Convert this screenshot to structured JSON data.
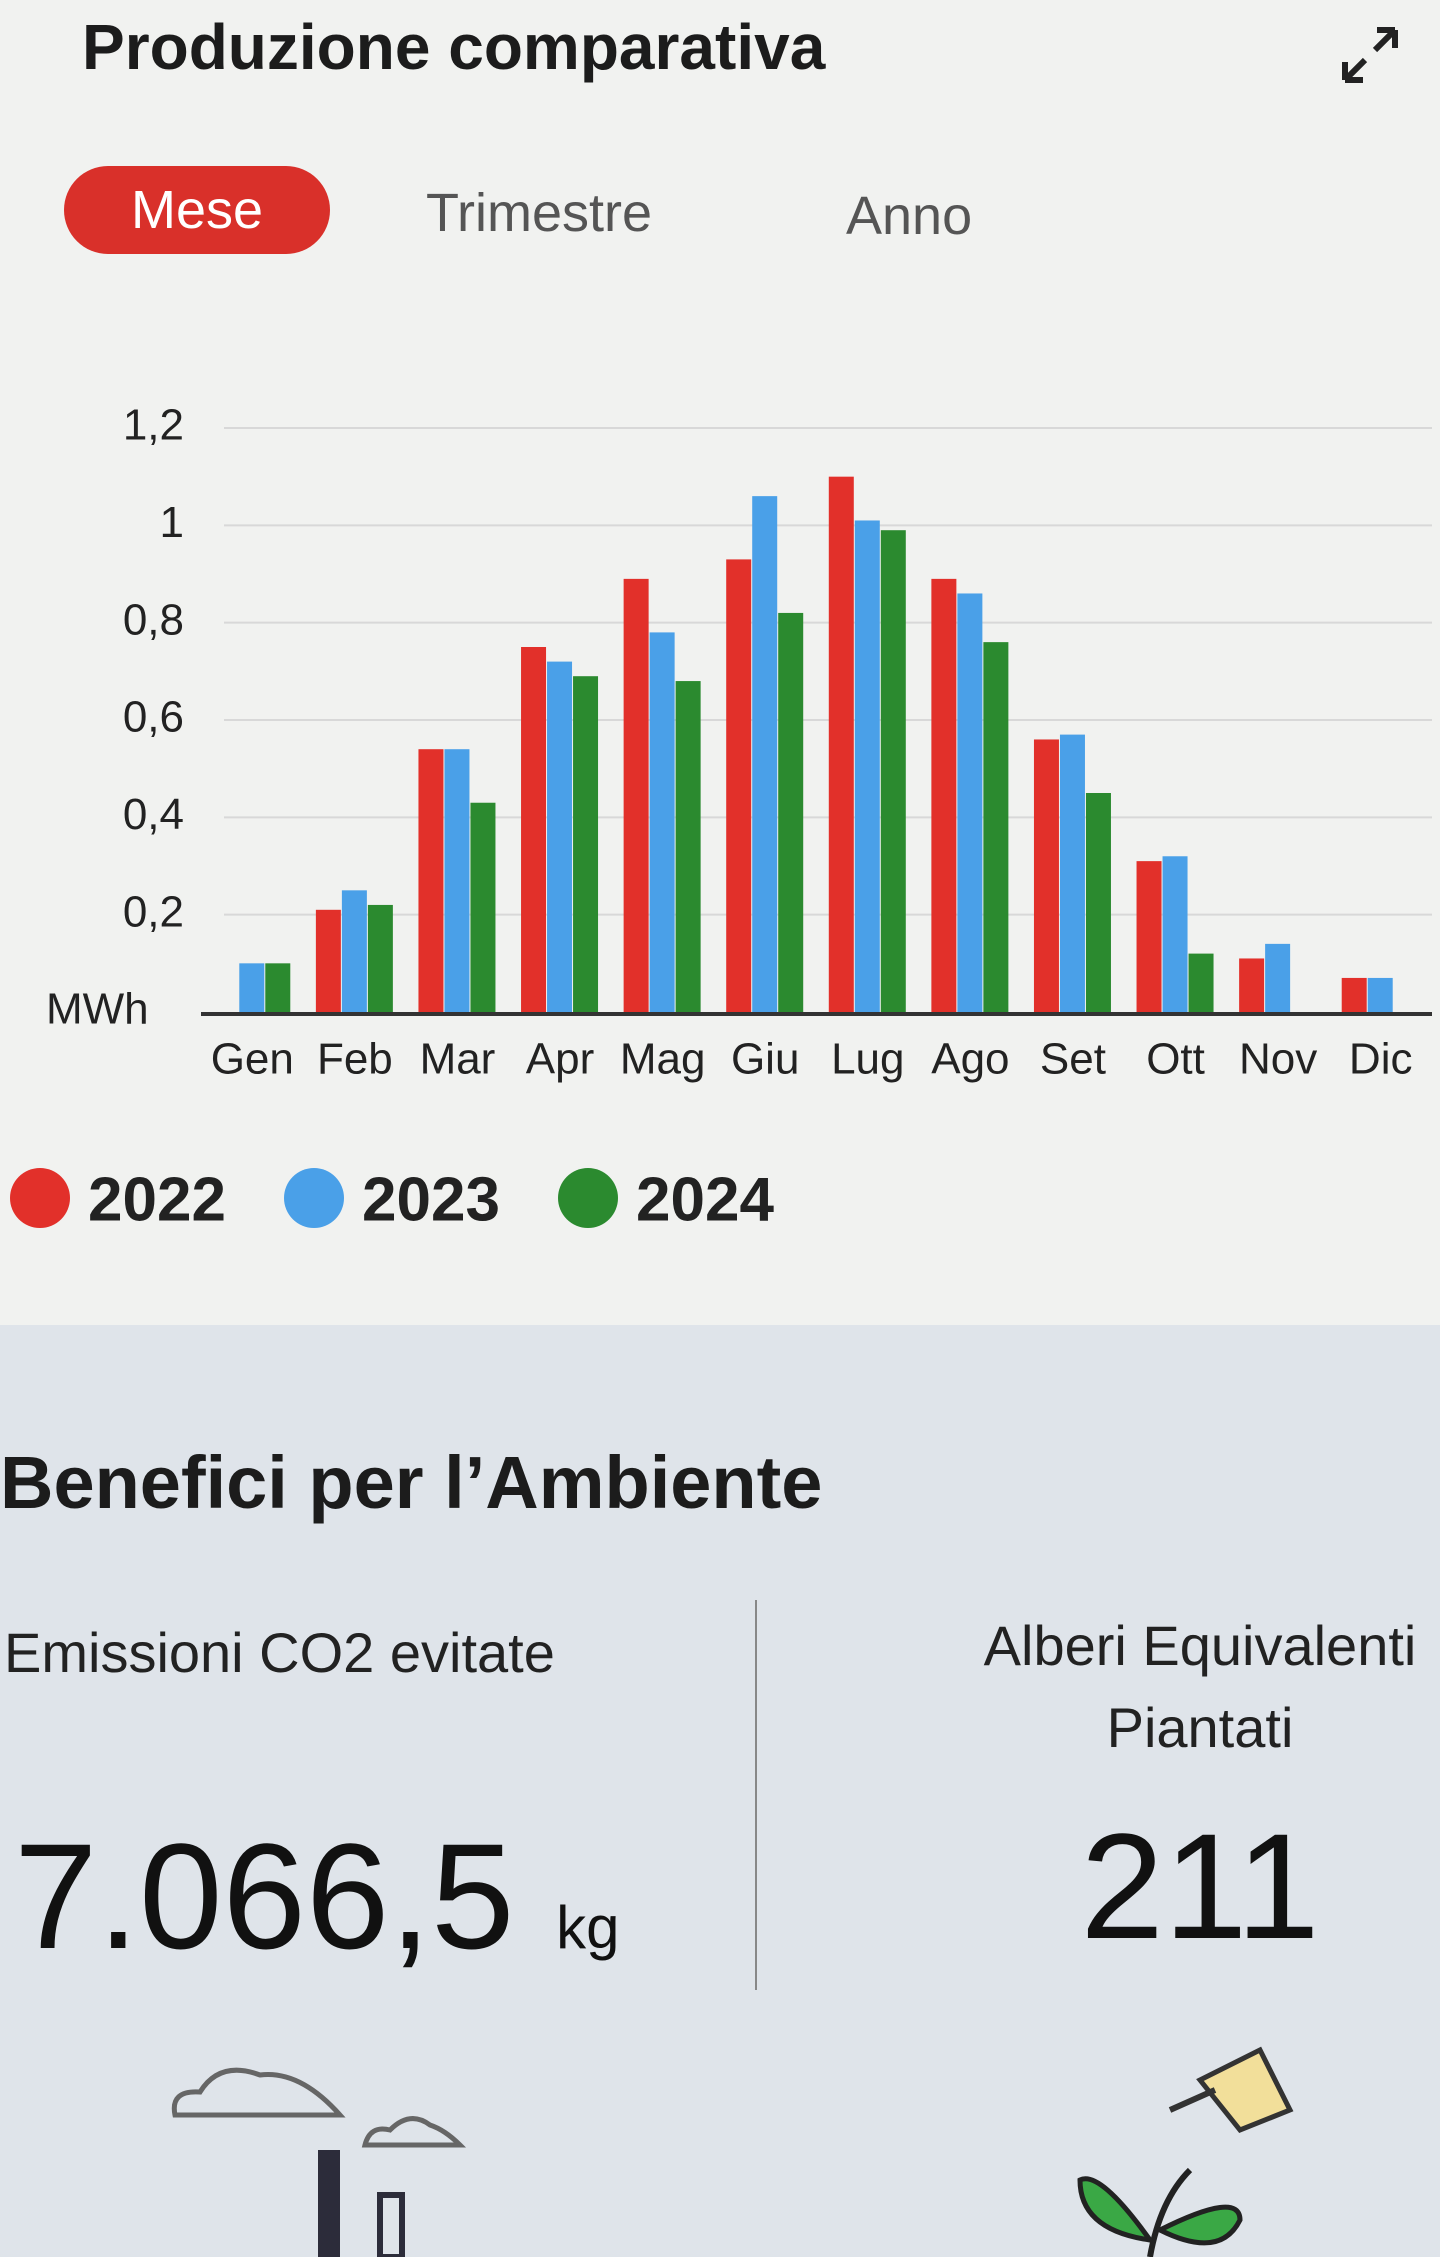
{
  "header": {
    "title": "Produzione comparativa"
  },
  "tabs": [
    "Mese",
    "Trimestre",
    "Anno"
  ],
  "chart_data": {
    "type": "bar",
    "y_label": "MWh",
    "categories": [
      "Gen",
      "Feb",
      "Mar",
      "Apr",
      "Mag",
      "Giu",
      "Lug",
      "Ago",
      "Set",
      "Ott",
      "Nov",
      "Dic"
    ],
    "series": [
      {
        "name": "2022",
        "color": "#e2302a",
        "values": [
          null,
          0.21,
          0.54,
          0.75,
          0.89,
          0.93,
          1.1,
          0.89,
          0.56,
          0.31,
          0.11,
          0.07
        ]
      },
      {
        "name": "2023",
        "color": "#4aa0e8",
        "values": [
          0.1,
          0.25,
          0.54,
          0.72,
          0.78,
          1.06,
          1.01,
          0.86,
          0.57,
          0.32,
          0.14,
          0.07
        ]
      },
      {
        "name": "2024",
        "color": "#2b8a2f",
        "values": [
          0.1,
          0.22,
          0.43,
          0.69,
          0.68,
          0.82,
          0.99,
          0.76,
          0.45,
          0.12,
          null,
          null
        ]
      }
    ],
    "ylim": [
      0,
      1.2
    ],
    "yticks": [
      {
        "value": 0.2,
        "label": "0,2"
      },
      {
        "value": 0.4,
        "label": "0,4"
      },
      {
        "value": 0.6,
        "label": "0,6"
      },
      {
        "value": 0.8,
        "label": "0,8"
      },
      1,
      {
        "value": 1.2,
        "label": "1,2"
      }
    ],
    "grid": true
  },
  "benefits": {
    "title": "Benefici per l’Ambiente",
    "co2": {
      "label": "Emissioni CO2 evitate",
      "value": "7.066,5",
      "unit": "kg"
    },
    "trees": {
      "label": "Alberi Equivalenti Piantati",
      "value": 211
    }
  }
}
